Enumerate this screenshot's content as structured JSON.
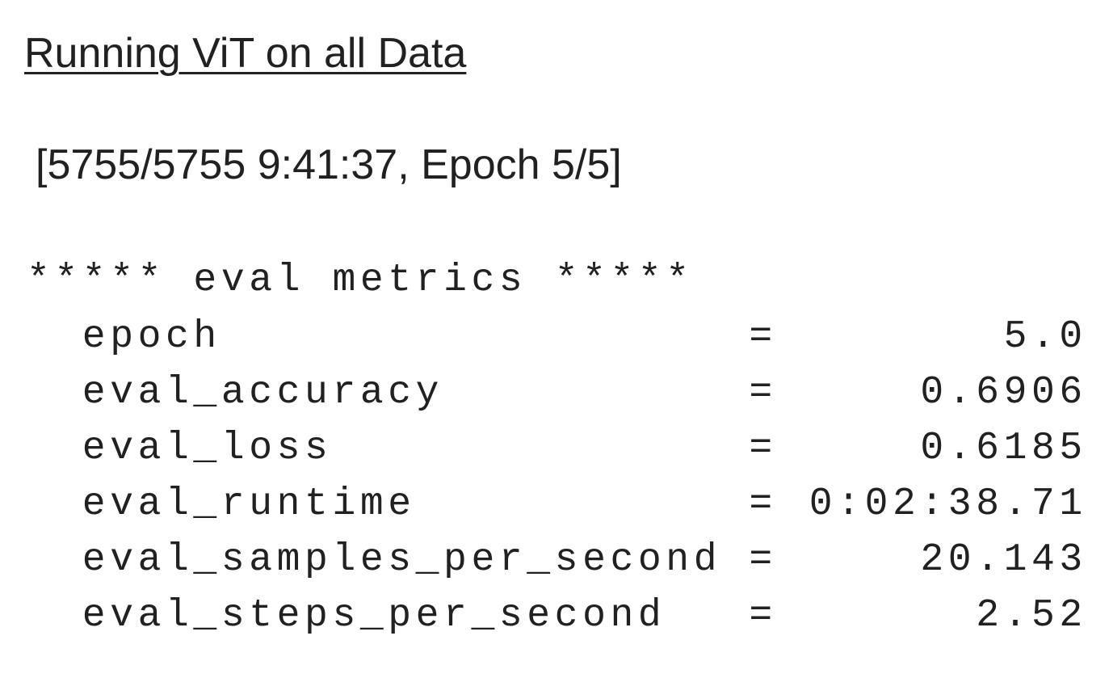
{
  "header": {
    "title": "Running ViT on all Data"
  },
  "progress": "[5755/5755 9:41:37, Epoch 5/5]",
  "metrics": {
    "heading": "***** eval metrics *****",
    "separator": "=",
    "rows": [
      {
        "name": "epoch",
        "value": "5.0"
      },
      {
        "name": "eval_accuracy",
        "value": "0.6906"
      },
      {
        "name": "eval_loss",
        "value": "0.6185"
      },
      {
        "name": "eval_runtime",
        "value": "0:02:38.71"
      },
      {
        "name": "eval_samples_per_second",
        "value": "20.143"
      },
      {
        "name": "eval_steps_per_second",
        "value": "2.52"
      }
    ]
  }
}
